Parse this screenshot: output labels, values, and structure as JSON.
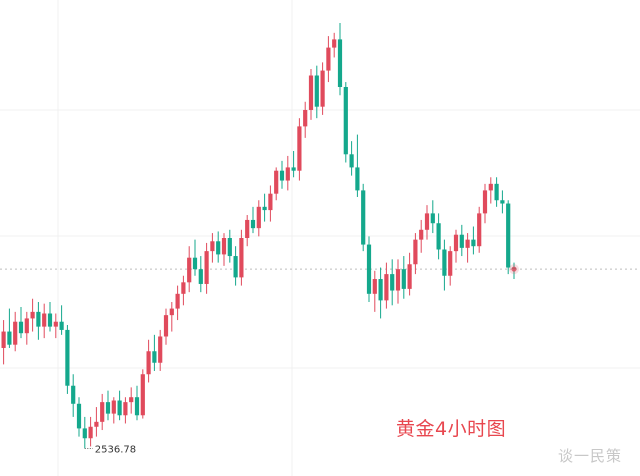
{
  "chart_data": {
    "type": "candlestick",
    "title": "黄金4小时图",
    "low_label": "2536.78",
    "current_price": 2646,
    "ylim": [
      2520,
      2810
    ],
    "grid": true,
    "up_color": "#e04a5c",
    "down_color": "#14a88c",
    "candles": [
      [
        2598,
        2615,
        2588,
        2608
      ],
      [
        2608,
        2622,
        2598,
        2600
      ],
      [
        2600,
        2620,
        2596,
        2614
      ],
      [
        2614,
        2623,
        2604,
        2607
      ],
      [
        2607,
        2620,
        2600,
        2616
      ],
      [
        2616,
        2628,
        2608,
        2620
      ],
      [
        2620,
        2626,
        2603,
        2611
      ],
      [
        2611,
        2625,
        2604,
        2619
      ],
      [
        2619,
        2626,
        2608,
        2611
      ],
      [
        2611,
        2619,
        2604,
        2614
      ],
      [
        2614,
        2624,
        2606,
        2609
      ],
      [
        2609,
        2612,
        2570,
        2575
      ],
      [
        2575,
        2582,
        2556,
        2564
      ],
      [
        2564,
        2568,
        2544,
        2549
      ],
      [
        2549,
        2556,
        2536.78,
        2543
      ],
      [
        2543,
        2556,
        2538,
        2550
      ],
      [
        2550,
        2562,
        2544,
        2553
      ],
      [
        2553,
        2570,
        2548,
        2565
      ],
      [
        2565,
        2572,
        2554,
        2558
      ],
      [
        2558,
        2568,
        2552,
        2566
      ],
      [
        2566,
        2572,
        2554,
        2557
      ],
      [
        2557,
        2568,
        2552,
        2565
      ],
      [
        2565,
        2574,
        2558,
        2568
      ],
      [
        2568,
        2575,
        2554,
        2557
      ],
      [
        2557,
        2585,
        2555,
        2582
      ],
      [
        2582,
        2603,
        2577,
        2596
      ],
      [
        2596,
        2606,
        2584,
        2589
      ],
      [
        2589,
        2609,
        2584,
        2605
      ],
      [
        2605,
        2622,
        2600,
        2618
      ],
      [
        2618,
        2626,
        2608,
        2622
      ],
      [
        2622,
        2636,
        2615,
        2631
      ],
      [
        2631,
        2642,
        2624,
        2638
      ],
      [
        2638,
        2660,
        2632,
        2653
      ],
      [
        2653,
        2664,
        2642,
        2646
      ],
      [
        2646,
        2654,
        2632,
        2637
      ],
      [
        2637,
        2662,
        2631,
        2657
      ],
      [
        2657,
        2668,
        2650,
        2663
      ],
      [
        2663,
        2669,
        2650,
        2655
      ],
      [
        2655,
        2668,
        2648,
        2665
      ],
      [
        2665,
        2670,
        2650,
        2654
      ],
      [
        2654,
        2660,
        2636,
        2641
      ],
      [
        2641,
        2670,
        2636,
        2665
      ],
      [
        2665,
        2679,
        2660,
        2676
      ],
      [
        2676,
        2684,
        2668,
        2671
      ],
      [
        2671,
        2688,
        2666,
        2684
      ],
      [
        2684,
        2692,
        2675,
        2682
      ],
      [
        2682,
        2697,
        2675,
        2692
      ],
      [
        2692,
        2708,
        2688,
        2706
      ],
      [
        2706,
        2712,
        2695,
        2700
      ],
      [
        2700,
        2715,
        2694,
        2708
      ],
      [
        2708,
        2718,
        2702,
        2706
      ],
      [
        2706,
        2738,
        2700,
        2733
      ],
      [
        2733,
        2748,
        2726,
        2743
      ],
      [
        2743,
        2768,
        2737,
        2764
      ],
      [
        2764,
        2770,
        2738,
        2745
      ],
      [
        2745,
        2772,
        2740,
        2767
      ],
      [
        2767,
        2788,
        2760,
        2781
      ],
      [
        2781,
        2790,
        2775,
        2786
      ],
      [
        2786,
        2796,
        2752,
        2757
      ],
      [
        2757,
        2760,
        2711,
        2716
      ],
      [
        2716,
        2724,
        2703,
        2708
      ],
      [
        2708,
        2728,
        2690,
        2694
      ],
      [
        2694,
        2698,
        2657,
        2661
      ],
      [
        2661,
        2666,
        2626,
        2631
      ],
      [
        2631,
        2645,
        2620,
        2640
      ],
      [
        2640,
        2647,
        2616,
        2627
      ],
      [
        2627,
        2650,
        2622,
        2643
      ],
      [
        2643,
        2652,
        2624,
        2633
      ],
      [
        2633,
        2652,
        2625,
        2646
      ],
      [
        2646,
        2654,
        2628,
        2634
      ],
      [
        2634,
        2656,
        2630,
        2649
      ],
      [
        2649,
        2668,
        2643,
        2664
      ],
      [
        2664,
        2676,
        2656,
        2670
      ],
      [
        2670,
        2685,
        2664,
        2680
      ],
      [
        2680,
        2688,
        2668,
        2674
      ],
      [
        2674,
        2680,
        2652,
        2658
      ],
      [
        2658,
        2664,
        2633,
        2642
      ],
      [
        2642,
        2660,
        2636,
        2657
      ],
      [
        2657,
        2670,
        2650,
        2667
      ],
      [
        2667,
        2673,
        2654,
        2659
      ],
      [
        2659,
        2668,
        2650,
        2664
      ],
      [
        2664,
        2672,
        2655,
        2660
      ],
      [
        2660,
        2684,
        2656,
        2680
      ],
      [
        2680,
        2698,
        2674,
        2694
      ],
      [
        2694,
        2702,
        2686,
        2698
      ],
      [
        2698,
        2702,
        2684,
        2688
      ],
      [
        2688,
        2694,
        2680,
        2686
      ],
      [
        2686,
        2688,
        2643,
        2647
      ],
      [
        2647,
        2650,
        2640,
        2646
      ]
    ]
  },
  "watermark": "谈一民策"
}
